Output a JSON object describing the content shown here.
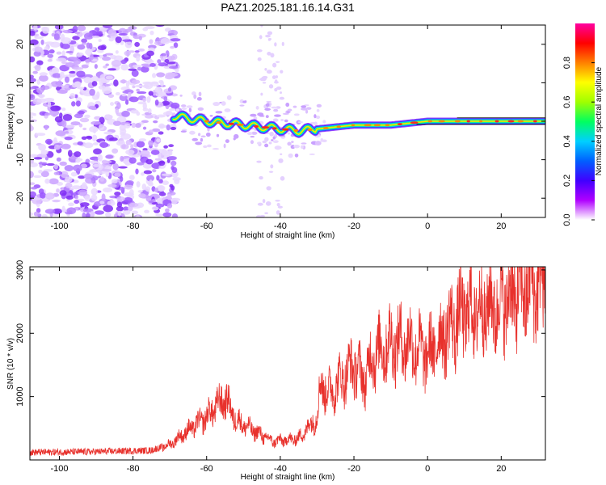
{
  "figure": {
    "title": "PAZ1.2025.181.16.14.G31"
  },
  "chart_data": [
    {
      "type": "heatmap",
      "title": "PAZ1.2025.181.16.14.G31",
      "xlabel": "Height of straight line (km)",
      "ylabel": "Frequency (Hz)",
      "xlim": [
        -108,
        32
      ],
      "ylim": [
        -25,
        25
      ],
      "xticks": [
        -100,
        -80,
        -60,
        -40,
        -20,
        0,
        20
      ],
      "yticks": [
        -20,
        -10,
        0,
        10,
        20
      ],
      "colorbar": {
        "label": "Normalized spectral amplitude",
        "range": [
          0,
          1
        ],
        "ticks": [
          0.0,
          0.2,
          0.4,
          0.6,
          0.8
        ],
        "colors": [
          "#ffffff",
          "#b000ff",
          "#4000ff",
          "#0060ff",
          "#00d0ff",
          "#00ff60",
          "#a0ff00",
          "#ffff00",
          "#ff8000",
          "#ff0000",
          "#ff00a0"
        ]
      },
      "ridge": {
        "x": [
          -70,
          -60,
          -50,
          -40,
          -35,
          -30,
          -20,
          -10,
          0,
          10,
          20,
          32
        ],
        "y": [
          1.5,
          0,
          -1,
          -2,
          -2.5,
          -2,
          -1,
          -1,
          0,
          0,
          0,
          0
        ]
      },
      "noise_region": [
        -108,
        -68
      ]
    },
    {
      "type": "line",
      "xlabel": "Height of straight line (km)",
      "ylabel": "SNR (10 * v/v)",
      "xlim": [
        -108,
        32
      ],
      "ylim": [
        0,
        3050
      ],
      "xticks": [
        -100,
        -80,
        -60,
        -40,
        -20,
        0,
        20
      ],
      "yticks": [
        1000,
        2000,
        3000
      ],
      "line_color": "#e8312c",
      "envelope": {
        "x": [
          -108,
          -90,
          -75,
          -70,
          -65,
          -60,
          -57,
          -55,
          -52,
          -48,
          -42,
          -35,
          -30,
          -29,
          -27,
          -25,
          -20,
          -17,
          -15,
          -10,
          -5,
          0,
          5,
          10,
          15,
          20,
          25,
          32
        ],
        "y": [
          120,
          130,
          150,
          250,
          480,
          700,
          900,
          1000,
          650,
          500,
          300,
          350,
          700,
          1250,
          1100,
          1200,
          1550,
          1300,
          1700,
          1900,
          1900,
          1700,
          2100,
          2400,
          2450,
          2550,
          2750,
          2900
        ]
      }
    }
  ]
}
